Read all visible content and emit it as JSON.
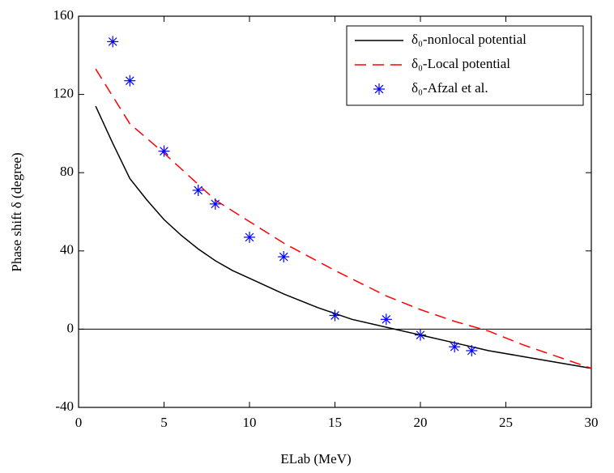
{
  "chart_data": {
    "type": "line",
    "xlabel": "ELab (MeV)",
    "ylabel": "Phase shift δ (degree)",
    "xlim": [
      0,
      30
    ],
    "xticks": [
      0,
      5,
      10,
      15,
      20,
      25,
      30
    ],
    "ylim": [
      -40,
      160
    ],
    "yticks": [
      -40,
      0,
      40,
      80,
      120,
      160
    ],
    "legend": "upper right",
    "series": [
      {
        "name": "δ₀-nonlocal potential",
        "color": "#000000",
        "style": "solid",
        "x": [
          1,
          2,
          3,
          4,
          5,
          6,
          7,
          8,
          9,
          10,
          12,
          14,
          16,
          18,
          20,
          22,
          24,
          26,
          28,
          30
        ],
        "values": [
          114,
          95,
          77,
          66,
          56,
          48,
          41,
          35,
          30,
          26,
          18,
          11,
          5,
          1,
          -3,
          -7,
          -11,
          -14,
          -17,
          -20
        ]
      },
      {
        "name": "δ₀-Local potential",
        "color": "#ff0000",
        "style": "dashed",
        "x": [
          1,
          3,
          5,
          7,
          8,
          10,
          12,
          15,
          18,
          20,
          22,
          24,
          26,
          28,
          30
        ],
        "values": [
          133,
          105,
          90,
          74,
          66,
          55,
          44,
          30,
          17,
          10,
          4,
          -1,
          -8,
          -14,
          -20
        ]
      },
      {
        "name": "δ₀-Afzal et al.",
        "color": "#0000ff",
        "style": "markers",
        "x": [
          2,
          3,
          5,
          7,
          8,
          10,
          12,
          15,
          18,
          20,
          22,
          23
        ],
        "values": [
          147,
          127,
          91,
          71,
          64,
          47,
          37,
          7,
          5,
          -3,
          -9,
          -11
        ]
      }
    ]
  }
}
